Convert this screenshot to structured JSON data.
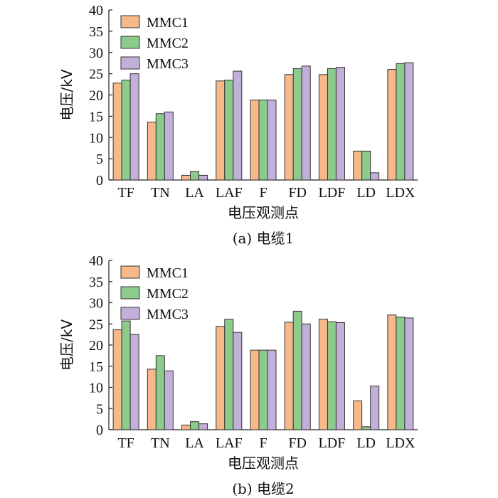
{
  "colors": {
    "MMC1": "#F7B98A",
    "MMC2": "#8DCB8C",
    "MMC3": "#C3B0DA"
  },
  "chart_data": [
    {
      "type": "bar",
      "caption": "(a)  电缆1",
      "xlabel": "电压观测点",
      "ylabel": "电压/kV",
      "ylim": [
        0,
        40
      ],
      "yticks": [
        0,
        5,
        10,
        15,
        20,
        25,
        30,
        35,
        40
      ],
      "categories": [
        "TF",
        "TN",
        "LA",
        "LAF",
        "F",
        "FD",
        "LDF",
        "LD",
        "LDX"
      ],
      "legend_position": "top-left",
      "series": [
        {
          "name": "MMC1",
          "values": [
            22.8,
            13.6,
            1.1,
            23.3,
            18.8,
            24.8,
            24.8,
            6.8,
            26.0
          ]
        },
        {
          "name": "MMC2",
          "values": [
            23.5,
            15.6,
            2.0,
            23.5,
            18.8,
            26.2,
            26.2,
            6.8,
            27.4
          ]
        },
        {
          "name": "MMC3",
          "values": [
            25.0,
            16.0,
            1.1,
            25.6,
            18.8,
            26.8,
            26.5,
            1.7,
            27.6
          ]
        }
      ]
    },
    {
      "type": "bar",
      "caption": "(b)  电缆2",
      "xlabel": "电压观测点",
      "ylabel": "电压/kV",
      "ylim": [
        0,
        40
      ],
      "yticks": [
        0,
        5,
        10,
        15,
        20,
        25,
        30,
        35,
        40
      ],
      "categories": [
        "TF",
        "TN",
        "LA",
        "LAF",
        "F",
        "FD",
        "LDF",
        "LD",
        "LDX"
      ],
      "legend_position": "top-left",
      "series": [
        {
          "name": "MMC1",
          "values": [
            23.6,
            14.3,
            1.1,
            24.4,
            18.8,
            25.4,
            26.1,
            6.8,
            27.1
          ]
        },
        {
          "name": "MMC2",
          "values": [
            25.7,
            17.5,
            1.9,
            26.1,
            18.8,
            28.0,
            25.5,
            0.7,
            26.6
          ]
        },
        {
          "name": "MMC3",
          "values": [
            22.5,
            13.9,
            1.4,
            23.0,
            18.8,
            25.0,
            25.3,
            10.3,
            26.4
          ]
        }
      ]
    }
  ]
}
